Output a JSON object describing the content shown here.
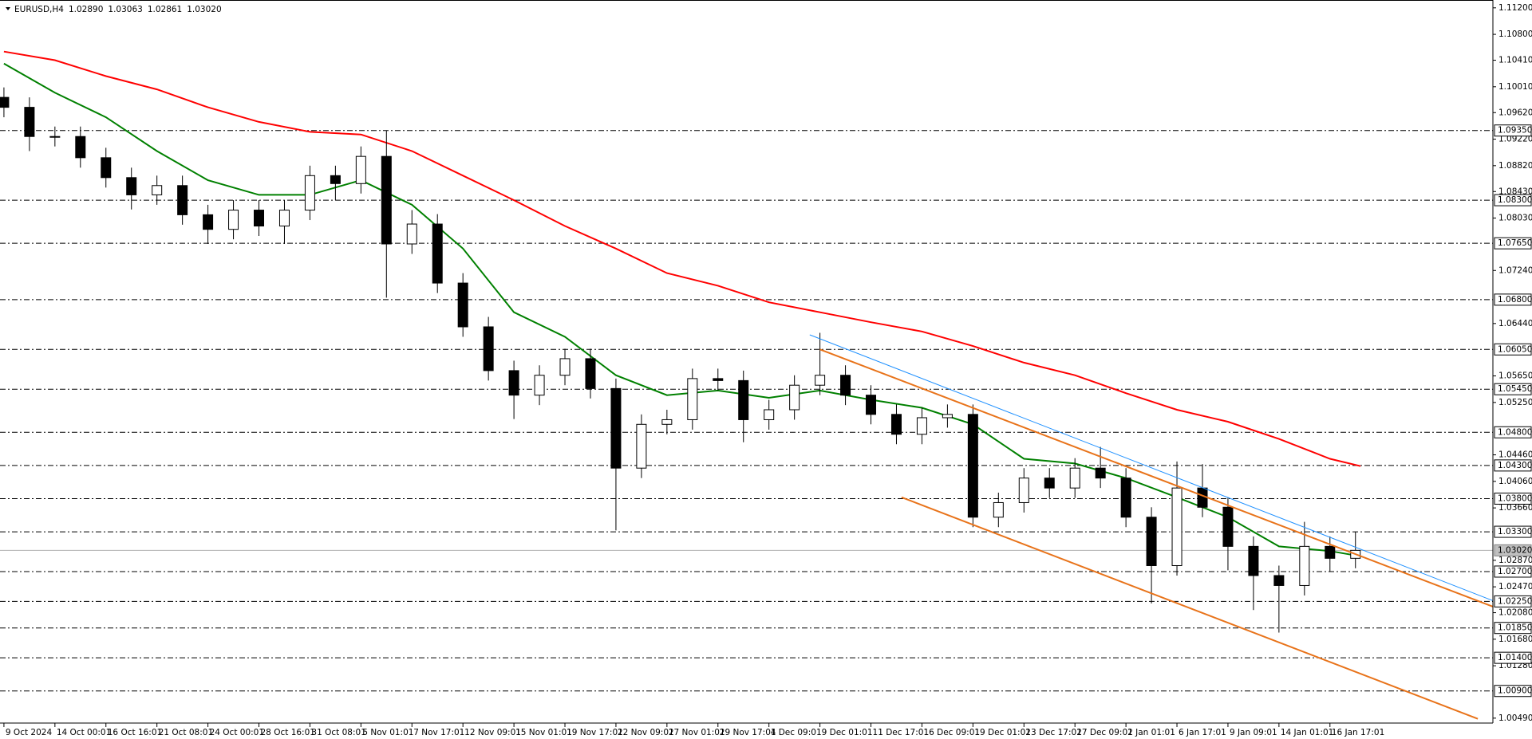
{
  "chart_data": {
    "type": "candlestick",
    "title": "EURUSD,H4",
    "info": [
      "1.02890",
      "1.03063",
      "1.02861",
      "1.03020"
    ],
    "xlim": [
      -0.77,
      291.95
    ],
    "ylim": [
      1.00416,
      1.11318
    ],
    "grid": false,
    "up_color": "#ffffff",
    "down_color": "#000000",
    "x": [
      0,
      5,
      10,
      15,
      20,
      25,
      30,
      35,
      40,
      45,
      50,
      55,
      60,
      65,
      70,
      75,
      80,
      85,
      90,
      95,
      100,
      105,
      110,
      115,
      120,
      125,
      130,
      135,
      140,
      145,
      150,
      155,
      160,
      165,
      170,
      175,
      180,
      185,
      190,
      195,
      200,
      205,
      210,
      215,
      220,
      225,
      230,
      235,
      240,
      245,
      250,
      255,
      260,
      265
    ],
    "open": [
      1.0985,
      1.097,
      1.0926,
      1.0926,
      1.0894,
      1.0864,
      1.0838,
      1.0852,
      1.0808,
      1.0786,
      1.0815,
      1.0791,
      1.0815,
      1.0867,
      1.0855,
      1.0896,
      1.0764,
      1.0794,
      1.0705,
      1.0639,
      1.0573,
      1.0536,
      1.0566,
      1.0591,
      1.0546,
      1.0426,
      1.0492,
      1.0499,
      1.0561,
      1.0558,
      1.0499,
      1.0514,
      1.0551,
      1.0566,
      1.0536,
      1.0507,
      1.0477,
      1.0502,
      1.0507,
      1.0352,
      1.0374,
      1.0411,
      1.0396,
      1.0426,
      1.0411,
      1.0352,
      1.0279,
      1.0396,
      1.0367,
      1.0308,
      1.0264,
      1.0249,
      1.0308,
      1.029
    ],
    "high": [
      1.1,
      1.0985,
      1.0941,
      1.0941,
      1.0909,
      1.0879,
      1.0867,
      1.0867,
      1.0823,
      1.083,
      1.083,
      1.083,
      1.0882,
      1.0882,
      1.0911,
      1.0935,
      1.0815,
      1.0809,
      1.072,
      1.0654,
      1.0588,
      1.0581,
      1.0606,
      1.0606,
      1.0561,
      1.0507,
      1.0514,
      1.0576,
      1.0576,
      1.0573,
      1.0529,
      1.0566,
      1.063,
      1.0581,
      1.0551,
      1.0522,
      1.0517,
      1.0522,
      1.0522,
      1.0389,
      1.0426,
      1.0426,
      1.0441,
      1.0458,
      1.0426,
      1.0367,
      1.0436,
      1.0432,
      1.0382,
      1.0323,
      1.0279,
      1.0345,
      1.0323,
      1.033
    ],
    "low": [
      1.0955,
      1.0904,
      1.0911,
      1.0879,
      1.0849,
      1.0816,
      1.0823,
      1.0793,
      1.0764,
      1.0771,
      1.0776,
      1.0764,
      1.08,
      1.083,
      1.084,
      1.0683,
      1.0749,
      1.069,
      1.0624,
      1.0558,
      1.05,
      1.0521,
      1.0551,
      1.0531,
      1.0332,
      1.0411,
      1.0477,
      1.0484,
      1.0543,
      1.0465,
      1.0484,
      1.0499,
      1.0536,
      1.0521,
      1.0492,
      1.0462,
      1.0462,
      1.0487,
      1.0337,
      1.0337,
      1.0359,
      1.0381,
      1.0381,
      1.0396,
      1.0337,
      1.0222,
      1.0264,
      1.0352,
      1.0272,
      1.0212,
      1.0178,
      1.0234,
      1.027,
      1.0275
    ],
    "close": [
      1.097,
      1.0926,
      1.0926,
      1.0894,
      1.0864,
      1.0838,
      1.0852,
      1.0808,
      1.0786,
      1.0815,
      1.0791,
      1.0815,
      1.0867,
      1.0855,
      1.0896,
      1.0764,
      1.0794,
      1.0705,
      1.0639,
      1.0573,
      1.0536,
      1.0566,
      1.0591,
      1.0546,
      1.0426,
      1.0492,
      1.0499,
      1.0561,
      1.0558,
      1.0499,
      1.0514,
      1.0551,
      1.0566,
      1.0536,
      1.0507,
      1.0477,
      1.0502,
      1.0507,
      1.0352,
      1.0374,
      1.0411,
      1.0396,
      1.0426,
      1.0411,
      1.0352,
      1.0279,
      1.0396,
      1.0367,
      1.0308,
      1.0264,
      1.0249,
      1.0308,
      1.029,
      1.0302
    ],
    "series": [
      {
        "color": "#008000",
        "x": [
          0,
          10,
          20,
          30,
          40,
          50,
          60,
          70,
          80,
          90,
          100,
          110,
          120,
          130,
          140,
          150,
          160,
          170,
          180,
          190,
          200,
          210,
          220,
          230,
          240,
          250,
          260,
          266
        ],
        "values": [
          1.1036,
          1.0992,
          1.0955,
          1.0904,
          1.086,
          1.0838,
          1.0838,
          1.086,
          1.0823,
          1.0757,
          1.0661,
          1.0624,
          1.0566,
          1.0536,
          1.0543,
          1.0532,
          1.0543,
          1.0529,
          1.0517,
          1.0492,
          1.044,
          1.0433,
          1.0411,
          1.0382,
          1.0352,
          1.0308,
          1.0301,
          1.0293
        ]
      },
      {
        "color": "#ff0000",
        "x": [
          0,
          10,
          20,
          30,
          40,
          50,
          60,
          70,
          80,
          90,
          100,
          110,
          120,
          130,
          140,
          150,
          160,
          170,
          180,
          190,
          200,
          210,
          220,
          230,
          240,
          250,
          260,
          266
        ],
        "values": [
          1.1054,
          1.1041,
          1.1017,
          1.0997,
          1.097,
          1.0948,
          1.0933,
          1.0929,
          1.0904,
          1.0867,
          1.083,
          1.0791,
          1.0757,
          1.072,
          1.0701,
          1.0676,
          1.0661,
          1.0646,
          1.0632,
          1.061,
          1.0585,
          1.0566,
          1.0539,
          1.0514,
          1.0496,
          1.047,
          1.044,
          1.0429
        ]
      }
    ],
    "trendlines": [
      {
        "color": "#1e90ff",
        "x": [
          158,
          292
        ],
        "values": [
          1.0627,
          1.0226
        ]
      },
      {
        "color": "#e8731a",
        "x": [
          160,
          292
        ],
        "values": [
          1.0605,
          1.0217
        ]
      },
      {
        "color": "#e8731a",
        "x": [
          176,
          289
        ],
        "values": [
          1.0382,
          1.0048
        ]
      }
    ],
    "yticks": [
      {
        "value": 1.112,
        "label": "1.11200"
      },
      {
        "value": 1.108,
        "label": "1.10800"
      },
      {
        "value": 1.1041,
        "label": "1.10410"
      },
      {
        "value": 1.1001,
        "label": "1.10010"
      },
      {
        "value": 1.0962,
        "label": "1.09620"
      },
      {
        "value": 1.0922,
        "label": "1.09220"
      },
      {
        "value": 1.0882,
        "label": "1.08820"
      },
      {
        "value": 1.0843,
        "label": "1.08430"
      },
      {
        "value": 1.0803,
        "label": "1.08030"
      },
      {
        "value": 1.0724,
        "label": "1.07240"
      },
      {
        "value": 1.0644,
        "label": "1.06440"
      },
      {
        "value": 1.0565,
        "label": "1.05650"
      },
      {
        "value": 1.0525,
        "label": "1.05250"
      },
      {
        "value": 1.0446,
        "label": "1.04460"
      },
      {
        "value": 1.0406,
        "label": "1.04060"
      },
      {
        "value": 1.0366,
        "label": "1.03660"
      },
      {
        "value": 1.0287,
        "label": "1.02870"
      },
      {
        "value": 1.0247,
        "label": "1.02470"
      },
      {
        "value": 1.0208,
        "label": "1.02080"
      },
      {
        "value": 1.0168,
        "label": "1.01680"
      },
      {
        "value": 1.0128,
        "label": "1.01280"
      },
      {
        "value": 1.0049,
        "label": "1.00490"
      }
    ],
    "levels": [
      {
        "value": 1.0935,
        "label": "1.09350"
      },
      {
        "value": 1.083,
        "label": "1.08300"
      },
      {
        "value": 1.0765,
        "label": "1.07650"
      },
      {
        "value": 1.068,
        "label": "1.06800"
      },
      {
        "value": 1.0605,
        "label": "1.06050"
      },
      {
        "value": 1.0545,
        "label": "1.05450"
      },
      {
        "value": 1.048,
        "label": "1.04800"
      },
      {
        "value": 1.043,
        "label": "1.04300"
      },
      {
        "value": 1.038,
        "label": "1.03800"
      },
      {
        "value": 1.033,
        "label": "1.03300"
      },
      {
        "value": 1.027,
        "label": "1.02700"
      },
      {
        "value": 1.0225,
        "label": "1.02250"
      },
      {
        "value": 1.0185,
        "label": "1.01850"
      },
      {
        "value": 1.014,
        "label": "1.01400"
      },
      {
        "value": 1.009,
        "label": "1.00900"
      }
    ],
    "current_price": {
      "value": 1.0302,
      "label": "1.03020"
    },
    "xticks": [
      {
        "value": 0,
        "label": "9 Oct 2024"
      },
      {
        "value": 10,
        "label": "14 Oct 00:01"
      },
      {
        "value": 20,
        "label": "16 Oct 16:01"
      },
      {
        "value": 30,
        "label": "21 Oct 08:01"
      },
      {
        "value": 40,
        "label": "24 Oct 00:01"
      },
      {
        "value": 50,
        "label": "28 Oct 16:01"
      },
      {
        "value": 60,
        "label": "31 Oct 08:01"
      },
      {
        "value": 70,
        "label": "5 Nov 01:01"
      },
      {
        "value": 80,
        "label": "7 Nov 17:01"
      },
      {
        "value": 90,
        "label": "12 Nov 09:01"
      },
      {
        "value": 100,
        "label": "15 Nov 01:01"
      },
      {
        "value": 110,
        "label": "19 Nov 17:01"
      },
      {
        "value": 120,
        "label": "22 Nov 09:01"
      },
      {
        "value": 130,
        "label": "27 Nov 01:01"
      },
      {
        "value": 140,
        "label": "29 Nov 17:01"
      },
      {
        "value": 150,
        "label": "4 Dec 09:01"
      },
      {
        "value": 160,
        "label": "9 Dec 01:01"
      },
      {
        "value": 170,
        "label": "11 Dec 17:01"
      },
      {
        "value": 180,
        "label": "16 Dec 09:01"
      },
      {
        "value": 190,
        "label": "19 Dec 01:01"
      },
      {
        "value": 200,
        "label": "23 Dec 17:01"
      },
      {
        "value": 210,
        "label": "27 Dec 09:01"
      },
      {
        "value": 220,
        "label": "2 Jan 01:01"
      },
      {
        "value": 230,
        "label": "6 Jan 17:01"
      },
      {
        "value": 240,
        "label": "9 Jan 09:01"
      },
      {
        "value": 250,
        "label": "14 Jan 01:01"
      },
      {
        "value": 260,
        "label": "16 Jan 17:01"
      }
    ]
  }
}
